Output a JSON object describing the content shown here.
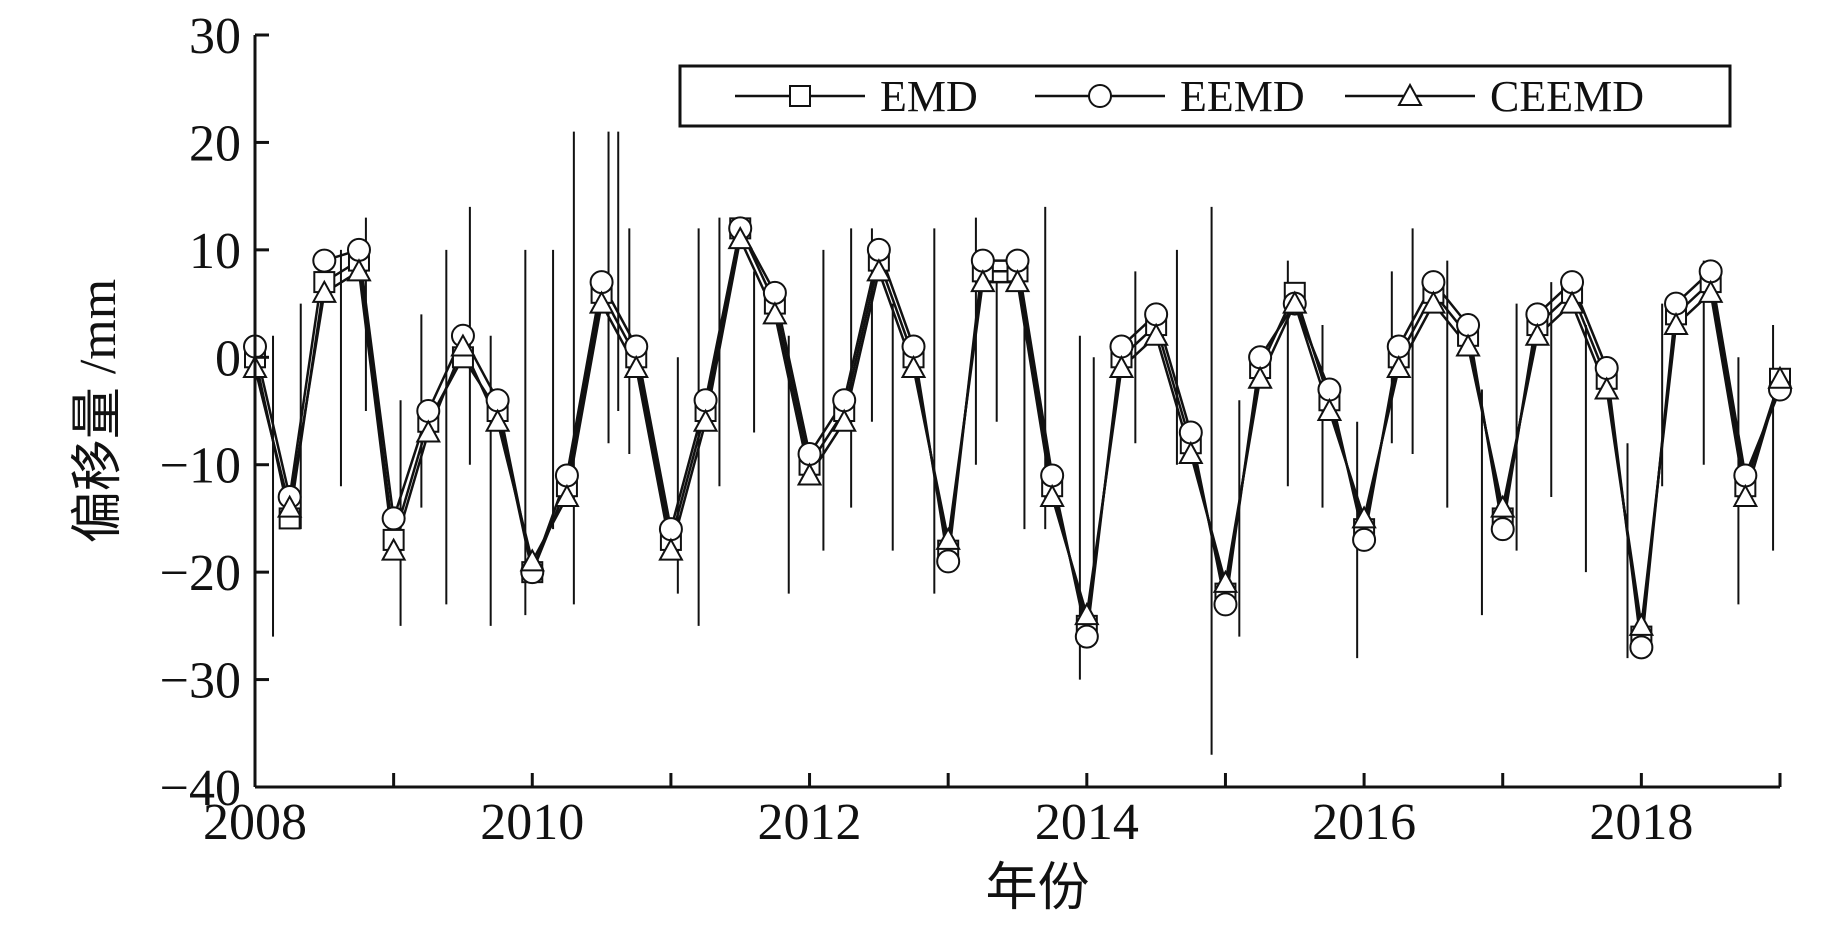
{
  "chart_data": {
    "type": "line",
    "xlabel": "年份",
    "ylabel": "偏移量 /mm",
    "xlim": [
      2008,
      2019
    ],
    "ylim": [
      -40,
      30
    ],
    "x_ticks": [
      2008,
      2010,
      2012,
      2014,
      2016,
      2018
    ],
    "x_tick_labels": [
      "2008",
      "2010",
      "2012",
      "2014",
      "2016",
      "2018"
    ],
    "y_ticks": [
      -40,
      -30,
      -20,
      -10,
      0,
      10,
      20,
      30
    ],
    "y_tick_labels": [
      "−40",
      "−30",
      "−20",
      "−10",
      "0",
      "10",
      "20",
      "30"
    ],
    "grid": false,
    "legend_position": "top-right",
    "colors": {
      "line": "#111111",
      "marker_fill": "#ffffff",
      "frame": "#111111"
    },
    "series": [
      {
        "name": "EMD",
        "marker": "square",
        "x": [
          2008.0,
          2008.25,
          2008.5,
          2008.75,
          2009.0,
          2009.25,
          2009.5,
          2009.75,
          2010.0,
          2010.25,
          2010.5,
          2010.75,
          2011.0,
          2011.25,
          2011.5,
          2011.75,
          2012.0,
          2012.25,
          2012.5,
          2012.75,
          2013.0,
          2013.25,
          2013.5,
          2013.75,
          2014.0,
          2014.25,
          2014.5,
          2014.75,
          2015.0,
          2015.25,
          2015.5,
          2015.75,
          2016.0,
          2016.25,
          2016.5,
          2016.75,
          2017.0,
          2017.25,
          2017.5,
          2017.75,
          2018.0,
          2018.25,
          2018.5,
          2018.75,
          2019.0
        ],
        "y": [
          0,
          -15,
          7,
          9,
          -17,
          -6,
          0,
          -5,
          -20,
          -12,
          6,
          0,
          -17,
          -5,
          12,
          5,
          -10,
          -5,
          9,
          0,
          -18,
          8,
          8,
          -12,
          -25,
          0,
          3,
          -8,
          -22,
          -1,
          6,
          -4,
          -16,
          0,
          6,
          2,
          -15,
          3,
          6,
          -2,
          -26,
          4,
          7,
          -12,
          -2
        ]
      },
      {
        "name": "EEMD",
        "marker": "circle",
        "x": [
          2008.0,
          2008.25,
          2008.5,
          2008.75,
          2009.0,
          2009.25,
          2009.5,
          2009.75,
          2010.0,
          2010.25,
          2010.5,
          2010.75,
          2011.0,
          2011.25,
          2011.5,
          2011.75,
          2012.0,
          2012.25,
          2012.5,
          2012.75,
          2013.0,
          2013.25,
          2013.5,
          2013.75,
          2014.0,
          2014.25,
          2014.5,
          2014.75,
          2015.0,
          2015.25,
          2015.5,
          2015.75,
          2016.0,
          2016.25,
          2016.5,
          2016.75,
          2017.0,
          2017.25,
          2017.5,
          2017.75,
          2018.0,
          2018.25,
          2018.5,
          2018.75,
          2019.0
        ],
        "y": [
          1,
          -13,
          9,
          10,
          -15,
          -5,
          2,
          -4,
          -20,
          -11,
          7,
          1,
          -16,
          -4,
          12,
          6,
          -9,
          -4,
          10,
          1,
          -19,
          9,
          9,
          -11,
          -26,
          1,
          4,
          -7,
          -23,
          0,
          5,
          -3,
          -17,
          1,
          7,
          3,
          -16,
          4,
          7,
          -1,
          -27,
          5,
          8,
          -11,
          -3
        ]
      },
      {
        "name": "CEEMD",
        "marker": "triangle",
        "x": [
          2008.0,
          2008.25,
          2008.5,
          2008.75,
          2009.0,
          2009.25,
          2009.5,
          2009.75,
          2010.0,
          2010.25,
          2010.5,
          2010.75,
          2011.0,
          2011.25,
          2011.5,
          2011.75,
          2012.0,
          2012.25,
          2012.5,
          2012.75,
          2013.0,
          2013.25,
          2013.5,
          2013.75,
          2014.0,
          2014.25,
          2014.5,
          2014.75,
          2015.0,
          2015.25,
          2015.5,
          2015.75,
          2016.0,
          2016.25,
          2016.5,
          2016.75,
          2017.0,
          2017.25,
          2017.5,
          2017.75,
          2018.0,
          2018.25,
          2018.5,
          2018.75,
          2019.0
        ],
        "y": [
          -1,
          -14,
          6,
          8,
          -18,
          -7,
          1,
          -6,
          -19,
          -13,
          5,
          -1,
          -18,
          -6,
          11,
          4,
          -11,
          -6,
          8,
          -1,
          -17,
          7,
          7,
          -13,
          -24,
          -1,
          2,
          -9,
          -21,
          -2,
          5,
          -5,
          -15,
          -1,
          5,
          1,
          -14,
          2,
          5,
          -3,
          -25,
          3,
          6,
          -13,
          -2
        ]
      }
    ],
    "spikes": {
      "description_free": true,
      "x": [
        2008.13,
        2008.33,
        2008.62,
        2008.8,
        2009.05,
        2009.2,
        2009.38,
        2009.55,
        2009.7,
        2009.95,
        2010.15,
        2010.3,
        2010.55,
        2010.62,
        2010.7,
        2011.05,
        2011.2,
        2011.35,
        2011.6,
        2011.85,
        2012.1,
        2012.3,
        2012.45,
        2012.6,
        2012.9,
        2013.2,
        2013.35,
        2013.55,
        2013.7,
        2013.95,
        2014.05,
        2014.35,
        2014.65,
        2014.9,
        2015.1,
        2015.45,
        2015.7,
        2015.95,
        2016.2,
        2016.35,
        2016.6,
        2016.85,
        2017.1,
        2017.35,
        2017.6,
        2017.9,
        2018.15,
        2018.45,
        2018.7,
        2018.95
      ],
      "y_low": [
        -26,
        -16,
        -12,
        -5,
        -25,
        -14,
        -23,
        -10,
        -25,
        -24,
        -16,
        -23,
        -8,
        -5,
        -9,
        -22,
        -25,
        -12,
        -7,
        -22,
        -18,
        -14,
        -6,
        -18,
        -22,
        -10,
        -6,
        -16,
        -16,
        -30,
        -20,
        -8,
        -10,
        -37,
        -26,
        -12,
        -14,
        -28,
        -8,
        -9,
        -14,
        -24,
        -18,
        -13,
        -20,
        -28,
        -12,
        -10,
        -23,
        -18
      ],
      "y_high": [
        2,
        5,
        10,
        13,
        -4,
        4,
        10,
        14,
        2,
        10,
        10,
        21,
        21,
        21,
        12,
        0,
        12,
        13,
        8,
        2,
        10,
        12,
        12,
        5,
        12,
        13,
        7,
        4,
        14,
        2,
        0,
        8,
        10,
        14,
        -4,
        9,
        3,
        -6,
        8,
        12,
        9,
        -3,
        5,
        7,
        3,
        -8,
        5,
        9,
        0,
        3
      ]
    }
  },
  "legend": {
    "entries": [
      {
        "label": "EMD",
        "marker": "square"
      },
      {
        "label": "EEMD",
        "marker": "circle"
      },
      {
        "label": "CEEMD",
        "marker": "triangle"
      }
    ]
  }
}
